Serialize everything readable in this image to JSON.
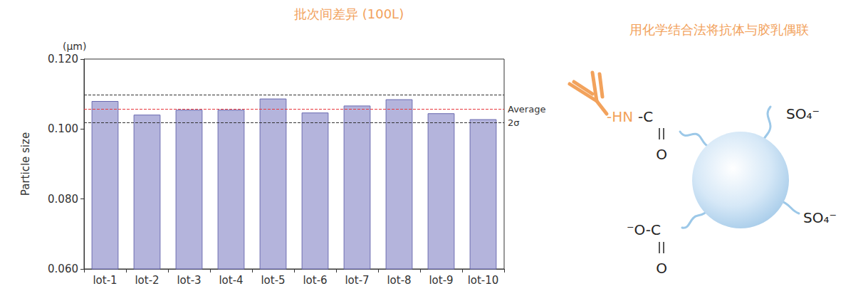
{
  "chart_data": {
    "type": "bar",
    "title": "批次间差异 (100L)",
    "ylabel": "Particle size",
    "yunit": "(μm)",
    "categories": [
      "lot-1",
      "lot-2",
      "lot-3",
      "lot-4",
      "lot-5",
      "lot-6",
      "lot-7",
      "lot-8",
      "lot-9",
      "lot-10"
    ],
    "values": [
      0.108,
      0.1041,
      0.1055,
      0.1055,
      0.1087,
      0.1047,
      0.1067,
      0.1085,
      0.1045,
      0.1028
    ],
    "color": "#b4b4dc",
    "ylim": [
      0.06,
      0.12
    ],
    "yticks": [
      {
        "value": 0.06,
        "label": "0.060"
      },
      {
        "value": 0.08,
        "label": "0.080"
      },
      {
        "value": 0.1,
        "label": "0.100"
      },
      {
        "value": 0.12,
        "label": "0.120"
      }
    ],
    "grid": false,
    "average": {
      "label": "Average",
      "value": 0.1057,
      "color": "#e8383d"
    },
    "sigma_band": {
      "label": "2σ",
      "values": [
        0.1018,
        0.1098
      ]
    }
  },
  "diagram": {
    "title": "用化学结合法将抗体与胶乳偶联",
    "amide_nh": "-HN",
    "amide_c": "-C",
    "amide_o": "O",
    "sulfates": [
      "SO₄⁻",
      "SO₄⁻"
    ],
    "carboxyl": "⁻O-C",
    "carboxyl_o": "O"
  }
}
